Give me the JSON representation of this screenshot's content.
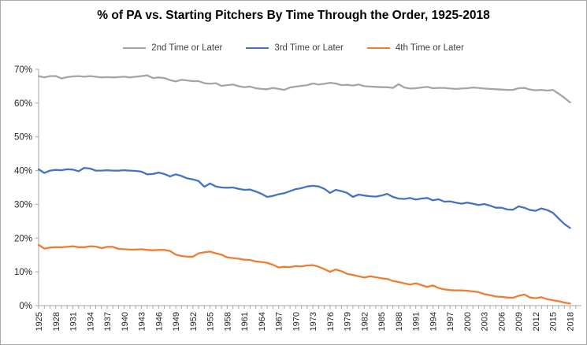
{
  "title": "% of PA vs. Starting Pitchers By Time Through the Order, 1925-2018",
  "chart_data": {
    "type": "line",
    "title": "% of PA vs. Starting Pitchers By Time Through the Order, 1925-2018",
    "xlabel": "",
    "ylabel": "",
    "grid": false,
    "legend_position": "top",
    "ylim": [
      0,
      70
    ],
    "y_tick_labels": [
      "0%",
      "10%",
      "20%",
      "30%",
      "40%",
      "50%",
      "60%",
      "70%"
    ],
    "x_start_year": 1925,
    "x_end_year": 2018,
    "x_tick_labels": [
      "1925",
      "1928",
      "1931",
      "1934",
      "1937",
      "1940",
      "1943",
      "1946",
      "1949",
      "1952",
      "1955",
      "1958",
      "1961",
      "1964",
      "1967",
      "1970",
      "1973",
      "1976",
      "1979",
      "1982",
      "1985",
      "1988",
      "1991",
      "1994",
      "1997",
      "2000",
      "2003",
      "2006",
      "2009",
      "2012",
      "2015",
      "2018"
    ],
    "axis_color": "#a6a6a6",
    "tick_text_color": "#262626",
    "series": [
      {
        "name": "2nd Time or Later",
        "color": "#a5a5a5",
        "values": [
          68.0,
          67.6,
          68.0,
          68.0,
          67.3,
          67.7,
          67.9,
          68.0,
          67.8,
          68.0,
          67.8,
          67.6,
          67.7,
          67.6,
          67.7,
          67.8,
          67.6,
          67.8,
          68.0,
          68.2,
          67.4,
          67.6,
          67.4,
          66.8,
          66.4,
          66.9,
          66.7,
          66.5,
          66.5,
          65.9,
          65.7,
          65.9,
          65.1,
          65.3,
          65.5,
          65.0,
          64.7,
          64.9,
          64.4,
          64.2,
          64.1,
          64.5,
          64.2,
          63.9,
          64.6,
          64.9,
          65.1,
          65.3,
          65.8,
          65.5,
          65.7,
          66.0,
          65.8,
          65.3,
          65.4,
          65.2,
          65.5,
          65.0,
          64.9,
          64.8,
          64.7,
          64.7,
          64.5,
          65.6,
          64.6,
          64.3,
          64.4,
          64.6,
          64.8,
          64.4,
          64.5,
          64.5,
          64.3,
          64.2,
          64.3,
          64.4,
          64.6,
          64.5,
          64.3,
          64.2,
          64.1,
          64.0,
          63.9,
          63.9,
          64.4,
          64.5,
          64.0,
          63.8,
          63.9,
          63.7,
          63.9,
          62.8,
          61.6,
          60.2
        ]
      },
      {
        "name": "3rd Time or Later",
        "color": "#4472c4",
        "values": [
          40.4,
          39.3,
          40.0,
          40.2,
          40.1,
          40.4,
          40.3,
          39.8,
          40.8,
          40.6,
          40.0,
          40.0,
          40.1,
          40.0,
          40.0,
          40.1,
          40.0,
          39.9,
          39.7,
          38.9,
          39.0,
          39.4,
          39.0,
          38.3,
          38.9,
          38.4,
          37.7,
          37.4,
          36.9,
          35.2,
          36.2,
          35.3,
          35.0,
          34.9,
          35.0,
          34.6,
          34.3,
          34.4,
          33.8,
          33.1,
          32.2,
          32.5,
          33.0,
          33.3,
          33.9,
          34.5,
          34.8,
          35.3,
          35.5,
          35.3,
          34.6,
          33.4,
          34.3,
          33.9,
          33.4,
          32.2,
          32.9,
          32.6,
          32.4,
          32.3,
          32.6,
          33.1,
          32.2,
          31.7,
          31.6,
          31.9,
          31.4,
          31.7,
          31.9,
          31.2,
          31.5,
          30.8,
          30.9,
          30.5,
          30.2,
          30.5,
          30.2,
          29.8,
          30.1,
          29.6,
          29.0,
          29.0,
          28.5,
          28.4,
          29.4,
          29.0,
          28.3,
          28.1,
          28.8,
          28.3,
          27.5,
          25.8,
          24.2,
          23.0
        ]
      },
      {
        "name": "4th Time or Later",
        "color": "#ed7d31",
        "values": [
          18.0,
          16.9,
          17.2,
          17.3,
          17.3,
          17.4,
          17.6,
          17.3,
          17.3,
          17.6,
          17.5,
          17.0,
          17.4,
          17.4,
          16.8,
          16.7,
          16.6,
          16.6,
          16.7,
          16.5,
          16.4,
          16.5,
          16.5,
          16.2,
          15.1,
          14.7,
          14.5,
          14.5,
          15.5,
          15.8,
          16.0,
          15.5,
          15.1,
          14.3,
          14.1,
          13.9,
          13.6,
          13.5,
          13.1,
          12.9,
          12.7,
          12.1,
          11.3,
          11.5,
          11.4,
          11.7,
          11.6,
          11.9,
          12.0,
          11.5,
          10.8,
          10.0,
          10.7,
          10.2,
          9.4,
          9.1,
          8.7,
          8.3,
          8.7,
          8.4,
          8.1,
          7.9,
          7.3,
          7.0,
          6.6,
          6.2,
          6.6,
          6.1,
          5.5,
          6.0,
          5.2,
          4.8,
          4.6,
          4.5,
          4.5,
          4.4,
          4.2,
          4.0,
          3.4,
          3.1,
          2.7,
          2.6,
          2.4,
          2.3,
          2.9,
          3.3,
          2.4,
          2.2,
          2.5,
          1.9,
          1.6,
          1.3,
          0.9,
          0.6
        ]
      }
    ]
  }
}
